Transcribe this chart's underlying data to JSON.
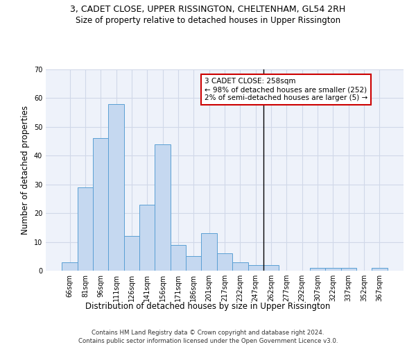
{
  "title_line1": "3, CADET CLOSE, UPPER RISSINGTON, CHELTENHAM, GL54 2RH",
  "title_line2": "Size of property relative to detached houses in Upper Rissington",
  "xlabel": "Distribution of detached houses by size in Upper Rissington",
  "ylabel": "Number of detached properties",
  "categories": [
    "66sqm",
    "81sqm",
    "96sqm",
    "111sqm",
    "126sqm",
    "141sqm",
    "156sqm",
    "171sqm",
    "186sqm",
    "201sqm",
    "217sqm",
    "232sqm",
    "247sqm",
    "262sqm",
    "277sqm",
    "292sqm",
    "307sqm",
    "322sqm",
    "337sqm",
    "352sqm",
    "367sqm"
  ],
  "values": [
    3,
    29,
    46,
    58,
    12,
    23,
    44,
    9,
    5,
    13,
    6,
    3,
    2,
    2,
    0,
    0,
    1,
    1,
    1,
    0,
    1
  ],
  "bar_color": "#c5d8f0",
  "bar_edge_color": "#5a9fd4",
  "vline_x_index": 13,
  "vline_color": "#000000",
  "annotation_text": "3 CADET CLOSE: 258sqm\n← 98% of detached houses are smaller (252)\n2% of semi-detached houses are larger (5) →",
  "annotation_box_color": "#ffffff",
  "annotation_box_edge_color": "#cc0000",
  "annotation_fontsize": 7.5,
  "ylim": [
    0,
    70
  ],
  "yticks": [
    0,
    10,
    20,
    30,
    40,
    50,
    60,
    70
  ],
  "grid_color": "#d0d8e8",
  "background_color": "#eef2fa",
  "footer_line1": "Contains HM Land Registry data © Crown copyright and database right 2024.",
  "footer_line2": "Contains public sector information licensed under the Open Government Licence v3.0.",
  "title_fontsize": 9,
  "subtitle_fontsize": 8.5,
  "xlabel_fontsize": 8.5,
  "ylabel_fontsize": 8.5,
  "tick_fontsize": 7
}
